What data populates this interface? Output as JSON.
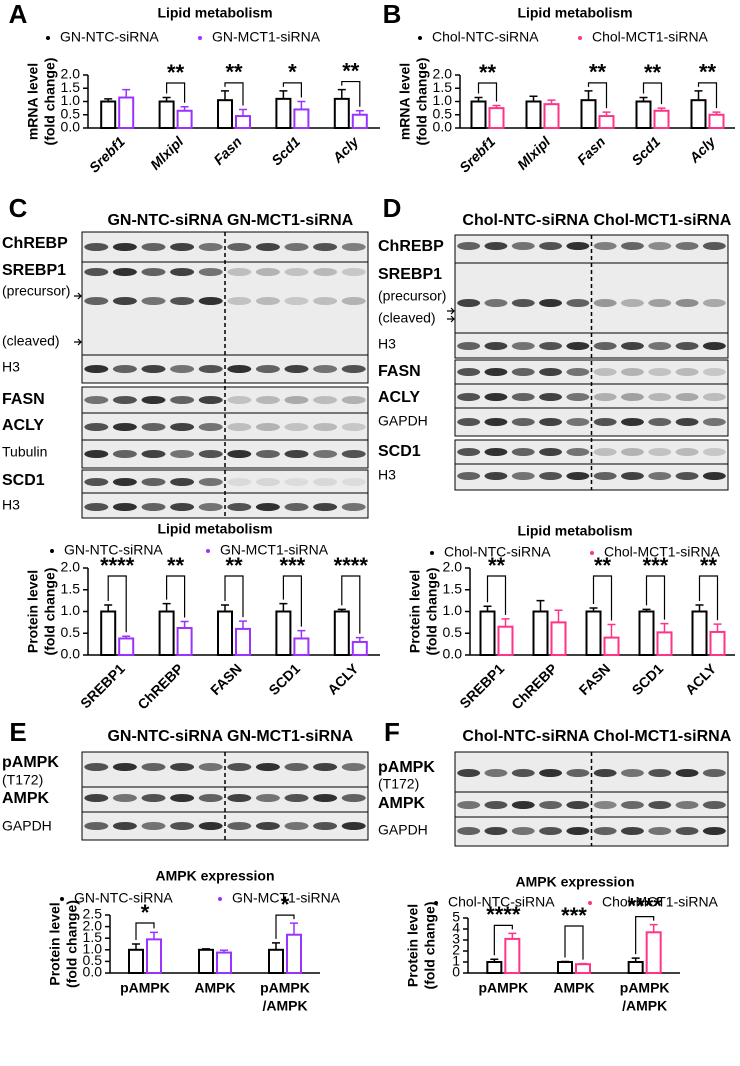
{
  "panels": [
    "A",
    "B",
    "C",
    "D",
    "E",
    "F"
  ],
  "blots": [
    {
      "headers": [
        "GN-NTC-siRNA",
        "GN-MCT1-siRNA"
      ],
      "header_colors": [
        "#000000",
        "#a68cf0"
      ],
      "rows": [
        "ChREBP",
        "SREBP1",
        "(precursor)",
        "(cleaved)",
        "H3",
        "FASN",
        "ACLY",
        "Tubulin",
        "SCD1",
        "H3"
      ]
    },
    {
      "headers": [
        "Chol-NTC-siRNA",
        "Chol-MCT1-siRNA"
      ],
      "header_colors": [
        "#000000",
        "#ff2d7a"
      ],
      "rows": [
        "ChREBP",
        "SREBP1",
        "(precursor)",
        "(cleaved)",
        "H3",
        "FASN",
        "ACLY",
        "GAPDH",
        "SCD1",
        "H3"
      ]
    },
    {
      "headers": [
        "GN-NTC-siRNA",
        "GN-MCT1-siRNA"
      ],
      "header_colors": [
        "#000000",
        "#a68cf0"
      ],
      "rows": [
        "pAMPK",
        "(T172)",
        "AMPK",
        "GAPDH"
      ]
    },
    {
      "headers": [
        "Chol-NTC-siRNA",
        "Chol-MCT1-siRNA"
      ],
      "header_colors": [
        "#000000",
        "#ff2d7a"
      ],
      "rows": [
        "pAMPK",
        "(T172)",
        "AMPK",
        "GAPDH"
      ]
    }
  ],
  "chart_data": [
    {
      "type": "bar",
      "title": "Lipid metabolism",
      "ylabel": [
        "mRNA level",
        "(fold change)"
      ],
      "italic_categories": true,
      "rotate_categories": true,
      "categories": [
        "Srebf1",
        "Mlxipl",
        "Fasn",
        "Scd1",
        "Acly"
      ],
      "series": [
        {
          "name": "GN-NTC-siRNA",
          "color": "#000000",
          "values": [
            1.0,
            1.0,
            1.05,
            1.1,
            1.1
          ],
          "errors": [
            0.1,
            0.15,
            0.35,
            0.3,
            0.35
          ]
        },
        {
          "name": "GN-MCT1-siRNA",
          "color": "#9933ff",
          "values": [
            1.15,
            0.65,
            0.45,
            0.7,
            0.5
          ],
          "errors": [
            0.3,
            0.15,
            0.25,
            0.3,
            0.15
          ]
        }
      ],
      "significance": [
        null,
        "**",
        "**",
        "*",
        "**"
      ],
      "ylim": [
        0,
        2
      ],
      "yticks": [
        {
          "value": 0,
          "label": "0.0"
        },
        0.5,
        {
          "value": 1,
          "label": "1.0"
        },
        1.5,
        {
          "value": 2,
          "label": "2.0"
        }
      ]
    },
    {
      "type": "bar",
      "title": "Lipid metabolism",
      "ylabel": [
        "mRNA level",
        "(fold change)"
      ],
      "italic_categories": true,
      "rotate_categories": true,
      "categories": [
        "Srebf1",
        "Mlxipl",
        "Fasn",
        "Scd1",
        "Acly"
      ],
      "series": [
        {
          "name": "Chol-NTC-siRNA",
          "color": "#000000",
          "values": [
            1.0,
            1.0,
            1.05,
            1.0,
            1.05
          ],
          "errors": [
            0.15,
            0.2,
            0.35,
            0.15,
            0.35
          ]
        },
        {
          "name": "Chol-MCT1-siRNA",
          "color": "#ff3388",
          "values": [
            0.75,
            0.9,
            0.45,
            0.65,
            0.5
          ],
          "errors": [
            0.1,
            0.15,
            0.15,
            0.1,
            0.1
          ]
        }
      ],
      "significance": [
        "**",
        null,
        "**",
        "**",
        "**"
      ],
      "ylim": [
        0,
        2
      ],
      "yticks": [
        {
          "value": 0,
          "label": "0.0"
        },
        0.5,
        {
          "value": 1,
          "label": "1.0"
        },
        1.5,
        {
          "value": 2,
          "label": "2.0"
        }
      ]
    },
    {
      "type": "bar",
      "title": "Lipid metabolism",
      "ylabel": [
        "Protein level",
        "(fold change)"
      ],
      "italic_categories": false,
      "rotate_categories": true,
      "categories": [
        "SREBP1",
        "ChREBP",
        "FASN",
        "SCD1",
        "ACLY"
      ],
      "series": [
        {
          "name": "GN-NTC-siRNA",
          "color": "#000000",
          "values": [
            1.0,
            1.0,
            1.0,
            1.0,
            1.0
          ],
          "errors": [
            0.15,
            0.18,
            0.15,
            0.18,
            0.05
          ]
        },
        {
          "name": "GN-MCT1-siRNA",
          "color": "#9933ff",
          "values": [
            0.38,
            0.62,
            0.6,
            0.38,
            0.3
          ],
          "errors": [
            0.05,
            0.15,
            0.18,
            0.18,
            0.1
          ]
        }
      ],
      "significance": [
        "****",
        "**",
        "**",
        "***",
        "****"
      ],
      "ylim": [
        0,
        2
      ],
      "yticks": [
        {
          "value": 0,
          "label": "0.0"
        },
        0.5,
        {
          "value": 1,
          "label": "1.0"
        },
        1.5,
        {
          "value": 2,
          "label": "2.0"
        }
      ]
    },
    {
      "type": "bar",
      "title": "Lipid metabolism",
      "ylabel": [
        "Protein level",
        "(fold change)"
      ],
      "italic_categories": false,
      "rotate_categories": true,
      "categories": [
        "SREBP1",
        "ChREBP",
        "FASN",
        "SCD1",
        "ACLY"
      ],
      "series": [
        {
          "name": "Chol-NTC-siRNA",
          "color": "#000000",
          "values": [
            1.0,
            1.0,
            1.0,
            1.0,
            1.0
          ],
          "errors": [
            0.12,
            0.25,
            0.08,
            0.05,
            0.15
          ]
        },
        {
          "name": "Chol-MCT1-siRNA",
          "color": "#ff3388",
          "values": [
            0.65,
            0.75,
            0.4,
            0.52,
            0.53
          ],
          "errors": [
            0.18,
            0.28,
            0.3,
            0.2,
            0.18
          ]
        }
      ],
      "significance": [
        "**",
        null,
        "**",
        "***",
        "**"
      ],
      "ylim": [
        0,
        2
      ],
      "yticks": [
        {
          "value": 0,
          "label": "0.0"
        },
        0.5,
        {
          "value": 1,
          "label": "1.0"
        },
        1.5,
        {
          "value": 2,
          "label": "2.0"
        }
      ]
    },
    {
      "type": "bar",
      "title": "AMPK expression",
      "ylabel": [
        "Protein level",
        "(fold change)"
      ],
      "italic_categories": false,
      "rotate_categories": false,
      "categories": [
        "pAMPK",
        "AMPK",
        [
          "pAMPK",
          "/AMPK"
        ]
      ],
      "series": [
        {
          "name": "GN-NTC-siRNA",
          "color": "#000000",
          "values": [
            1.0,
            1.0,
            1.0
          ],
          "errors": [
            0.25,
            0.04,
            0.3
          ]
        },
        {
          "name": "GN-MCT1-siRNA",
          "color": "#9933ff",
          "values": [
            1.45,
            0.88,
            1.65
          ],
          "errors": [
            0.3,
            0.1,
            0.5
          ]
        }
      ],
      "significance": [
        "*",
        null,
        "*"
      ],
      "ylim": [
        0,
        2.5
      ],
      "yticks": [
        {
          "value": 0,
          "label": "0.0"
        },
        0.5,
        {
          "value": 1,
          "label": "1.0"
        },
        1.5,
        {
          "value": 2,
          "label": "2.0"
        },
        2.5
      ]
    },
    {
      "type": "bar",
      "title": "AMPK expression",
      "ylabel": [
        "Protein level",
        "(fold change)"
      ],
      "italic_categories": false,
      "rotate_categories": false,
      "categories": [
        "pAMPK",
        "AMPK",
        [
          "pAMPK",
          "/AMPK"
        ]
      ],
      "series": [
        {
          "name": "Chol-NTC-siRNA",
          "color": "#000000",
          "values": [
            1.0,
            1.0,
            1.0
          ],
          "errors": [
            0.25,
            0.05,
            0.35
          ]
        },
        {
          "name": "Chol-MCT1-siRNA",
          "color": "#ff3388",
          "values": [
            3.1,
            0.8,
            3.7
          ],
          "errors": [
            0.5,
            0.05,
            0.7
          ]
        }
      ],
      "significance": [
        "****",
        "***",
        "****"
      ],
      "ylim": [
        0,
        5
      ],
      "yticks": [
        0,
        1,
        2,
        3,
        4,
        5
      ]
    }
  ]
}
